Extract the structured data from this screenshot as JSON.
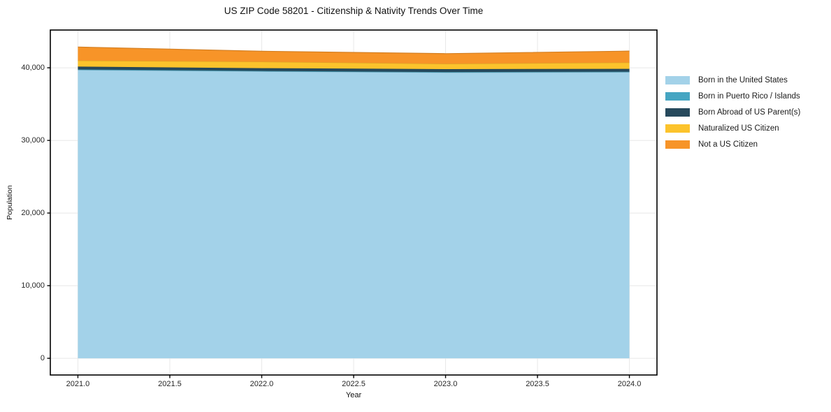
{
  "chart_data": {
    "type": "area",
    "stacked": true,
    "title": "US ZIP Code 58201 - Citizenship & Nativity Trends Over Time",
    "xlabel": "Year",
    "ylabel": "Population",
    "x": [
      2021,
      2022,
      2023,
      2024
    ],
    "series": [
      {
        "name": "Born in the United States",
        "color": "#A3D2E9",
        "values": [
          39700,
          39500,
          39350,
          39400
        ]
      },
      {
        "name": "Born in Puerto Rico / Islands",
        "color": "#45A5C2",
        "values": [
          80,
          70,
          70,
          70
        ]
      },
      {
        "name": "Born Abroad of US Parent(s)",
        "color": "#26495C",
        "values": [
          380,
          380,
          400,
          380
        ]
      },
      {
        "name": "Naturalized US Citizen",
        "color": "#FCC32C",
        "values": [
          830,
          880,
          730,
          870
        ]
      },
      {
        "name": "Not a US Citizen",
        "color": "#F79428",
        "values": [
          1870,
          1450,
          1400,
          1580
        ]
      }
    ],
    "xticks": [
      2021.0,
      2021.5,
      2022.0,
      2022.5,
      2023.0,
      2023.5,
      2024.0
    ],
    "xtick_labels": [
      "2021.0",
      "2021.5",
      "2022.0",
      "2022.5",
      "2023.0",
      "2023.5",
      "2024.0"
    ],
    "yticks": [
      0,
      10000,
      20000,
      30000,
      40000
    ],
    "ytick_labels": [
      "0",
      "10,000",
      "20,000",
      "30,000",
      "40,000"
    ],
    "xlim": [
      2020.85,
      2024.15
    ],
    "ylim": [
      -2300,
      45200
    ],
    "grid": true,
    "grid_color": "#e8e8e8",
    "spine_color": "#000000",
    "legend_position": "right"
  }
}
